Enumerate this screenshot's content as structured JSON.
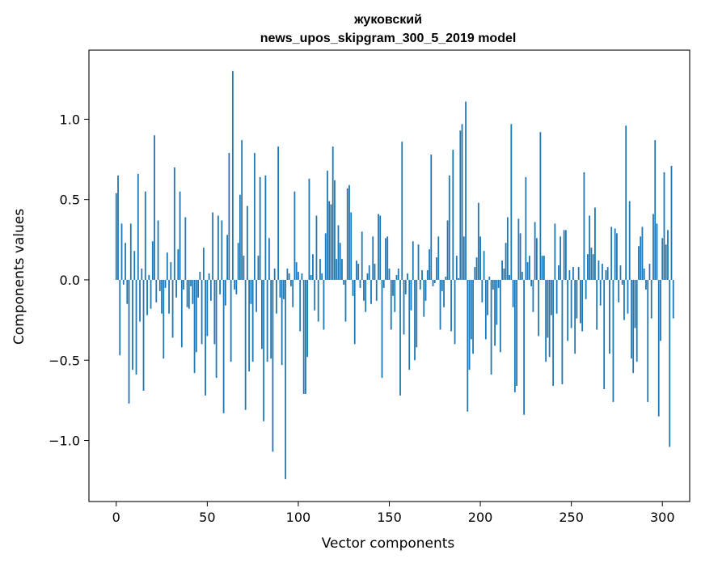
{
  "chart_data": {
    "type": "bar",
    "title": "жуковский",
    "subtitle": "news_upos_skipgram_300_5_2019 model",
    "xlabel": "Vector components",
    "ylabel": "Components values",
    "xlim": [
      -15,
      315
    ],
    "ylim": [
      -1.38,
      1.43
    ],
    "xticks": [
      0,
      50,
      100,
      150,
      200,
      250,
      300
    ],
    "xtick_labels": [
      "0",
      "50",
      "100",
      "150",
      "200",
      "250",
      "300"
    ],
    "yticks": [
      -1.0,
      -0.5,
      0.0,
      0.5,
      1.0
    ],
    "ytick_labels": [
      "−1.0",
      "−0.5",
      "0.0",
      "0.5",
      "1.0"
    ],
    "grid": false,
    "color": "#1f77b4",
    "values": [
      0.54,
      0.65,
      -0.47,
      0.35,
      -0.03,
      0.23,
      -0.15,
      -0.77,
      0.35,
      -0.56,
      0.18,
      -0.59,
      0.66,
      -0.26,
      0.07,
      -0.69,
      0.55,
      -0.22,
      0.03,
      -0.18,
      0.24,
      0.9,
      -0.14,
      0.37,
      -0.07,
      -0.21,
      -0.49,
      -0.05,
      0.17,
      -0.21,
      0.11,
      -0.36,
      0.7,
      -0.11,
      0.19,
      0.55,
      -0.42,
      -0.06,
      0.39,
      -0.17,
      -0.18,
      -0.04,
      -0.15,
      -0.58,
      -0.45,
      -0.11,
      0.05,
      -0.4,
      0.2,
      -0.72,
      -0.35,
      0.04,
      -0.13,
      0.42,
      -0.4,
      -0.61,
      0.4,
      -0.09,
      0.37,
      -0.83,
      -0.16,
      0.28,
      0.79,
      -0.51,
      1.3,
      -0.06,
      -0.09,
      0.23,
      0.53,
      0.87,
      0.15,
      -0.81,
      0.46,
      -0.57,
      -0.15,
      -0.51,
      0.79,
      -0.2,
      0.15,
      0.64,
      -0.43,
      -0.88,
      0.65,
      -0.51,
      0.26,
      -0.49,
      -1.07,
      0.07,
      -0.21,
      0.83,
      -0.11,
      -0.53,
      -0.12,
      -1.24,
      0.07,
      0.04,
      -0.04,
      -0.17,
      0.55,
      0.11,
      0.05,
      -0.32,
      0.04,
      -0.71,
      -0.71,
      -0.48,
      0.63,
      0.03,
      0.16,
      -0.19,
      0.4,
      -0.26,
      0.13,
      0.04,
      -0.31,
      0.29,
      0.68,
      0.49,
      0.47,
      0.83,
      0.62,
      0.13,
      0.34,
      0.23,
      0.13,
      -0.03,
      -0.26,
      0.57,
      0.59,
      0.42,
      -0.1,
      -0.4,
      0.12,
      0.1,
      -0.05,
      0.3,
      -0.13,
      -0.2,
      0.04,
      0.09,
      -0.15,
      0.27,
      0.1,
      -0.13,
      0.41,
      0.4,
      -0.61,
      -0.05,
      0.26,
      0.27,
      0.07,
      -0.31,
      -0.1,
      -0.2,
      0.03,
      0.07,
      -0.72,
      0.86,
      -0.34,
      -0.09,
      0.04,
      -0.56,
      -0.19,
      0.24,
      -0.5,
      -0.42,
      0.22,
      -0.06,
      0.06,
      -0.23,
      -0.13,
      0.06,
      0.19,
      0.78,
      -0.04,
      -0.02,
      0.14,
      0.27,
      -0.31,
      -0.07,
      -0.17,
      0.02,
      0.37,
      0.65,
      -0.32,
      0.81,
      -0.4,
      0.15,
      0.01,
      0.93,
      0.97,
      0.27,
      1.11,
      -0.82,
      -0.56,
      -0.37,
      -0.46,
      0.08,
      0.14,
      0.48,
      0.27,
      -0.14,
      0.18,
      -0.37,
      -0.22,
      0.02,
      -0.59,
      -0.06,
      -0.41,
      -0.28,
      -0.05,
      -0.45,
      0.12,
      0.07,
      0.23,
      0.39,
      0.03,
      0.97,
      -0.17,
      -0.7,
      -0.66,
      0.38,
      0.29,
      0.05,
      -0.84,
      0.64,
      0.11,
      0.15,
      -0.04,
      -0.2,
      0.36,
      0.26,
      -0.35,
      0.92,
      0.15,
      0.15,
      -0.51,
      -0.36,
      -0.48,
      -0.22,
      -0.66,
      0.35,
      -0.21,
      0.09,
      0.27,
      -0.65,
      0.31,
      0.31,
      -0.38,
      0.06,
      -0.3,
      0.08,
      -0.46,
      -0.24,
      0.08,
      -0.27,
      -0.32,
      0.67,
      -0.12,
      0.16,
      0.4,
      0.2,
      0.16,
      0.45,
      -0.31,
      0.12,
      -0.16,
      0.1,
      -0.68,
      0.06,
      0.08,
      -0.46,
      0.33,
      -0.76,
      0.32,
      0.29,
      -0.14,
      0.09,
      -0.03,
      -0.25,
      0.96,
      -0.21,
      0.49,
      -0.49,
      -0.58,
      -0.3,
      -0.51,
      0.21,
      0.27,
      0.33,
      0.07,
      -0.06,
      -0.76,
      0.1,
      -0.24,
      0.41,
      0.87,
      0.35,
      -0.85,
      -0.38,
      0.26,
      0.67,
      0.22,
      0.31,
      -1.04,
      0.71,
      -0.24
    ]
  }
}
